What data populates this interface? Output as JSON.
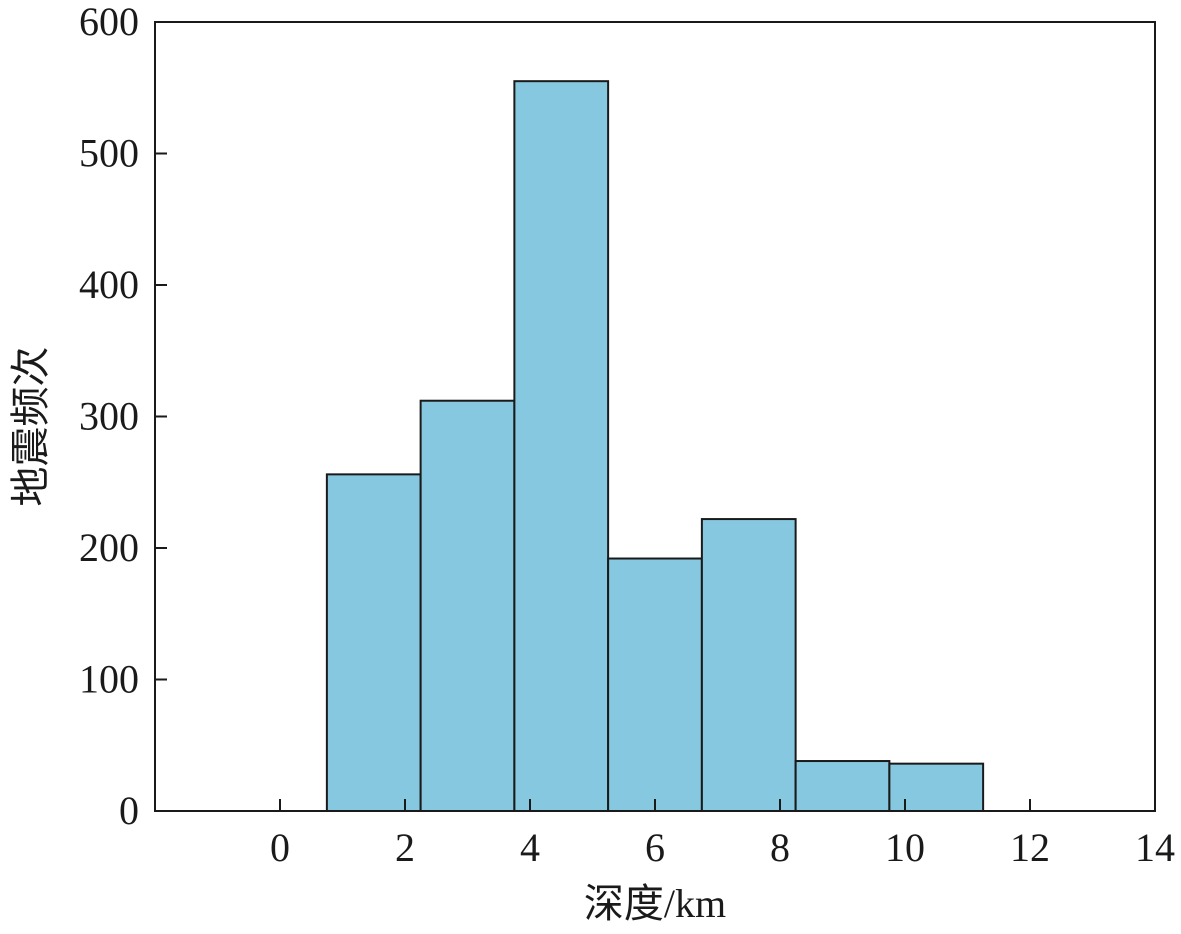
{
  "chart_data": {
    "type": "bar",
    "title": "",
    "xlabel": "深度/km",
    "ylabel": "地震频次",
    "bin_edges": [
      0.75,
      2.25,
      3.75,
      5.25,
      6.75,
      8.25,
      9.75,
      11.25
    ],
    "values": [
      256,
      312,
      555,
      192,
      222,
      38,
      36
    ],
    "xlim": [
      -2,
      14
    ],
    "ylim": [
      0,
      600
    ],
    "xticks": [
      0,
      2,
      4,
      6,
      8,
      10,
      12,
      14
    ],
    "yticks": [
      0,
      100,
      200,
      300,
      400,
      500,
      600
    ],
    "xtick_labels": [
      "0",
      "2",
      "4",
      "6",
      "8",
      "10",
      "12",
      "14"
    ],
    "ytick_labels": [
      "0",
      "100",
      "200",
      "300",
      "400",
      "500",
      "600"
    ],
    "grid": false,
    "legend": "none",
    "colors": {
      "bar_fill": "#85c8df",
      "edge": "#1a1a1a"
    }
  }
}
